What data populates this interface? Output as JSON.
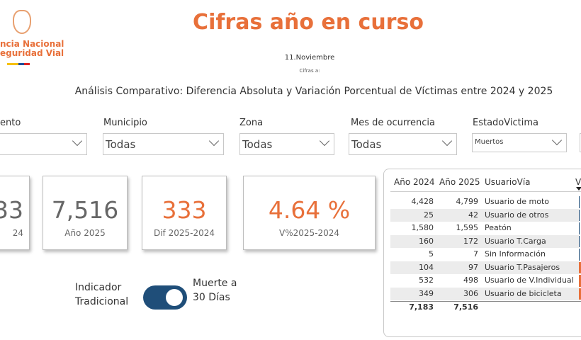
{
  "header": {
    "logo_lines": [
      "ncia Nacional",
      "eguridad Vial"
    ],
    "title": "Cifras año en curso",
    "date": "11.Noviembre",
    "date_caption": "Cifras a:",
    "subtitle": "Análisis Comparativo: Diferencia Absoluta y Variación Porcentual de Víctimas entre 2024 y 2025"
  },
  "filters": [
    {
      "label": "ento"
    },
    {
      "label": "Municipio",
      "value": "Todas"
    },
    {
      "label": "Zona",
      "value": "Todas"
    },
    {
      "label": "Mes de ocurrencia",
      "value": "Todas"
    },
    {
      "label": "EstadoVictima",
      "value": "Muertos"
    }
  ],
  "cards": [
    {
      "value": "33",
      "label": "24"
    },
    {
      "value": "7,516",
      "label": "Año 2025"
    },
    {
      "value": "333",
      "label": "Dif 2025-2024"
    },
    {
      "value": "4.64 %",
      "label": "V%2025-2024"
    }
  ],
  "toggle": {
    "left_lines": [
      "Indicador",
      "Tradicional"
    ],
    "right_lines": [
      "Muerte a",
      "30 Días"
    ]
  },
  "table": {
    "headers": [
      "Año 2024",
      "Año 2025",
      "UsuarioVía",
      "V"
    ],
    "rows": [
      [
        "4,428",
        "4,799",
        "Usuario de moto"
      ],
      [
        "25",
        "42",
        "Usuario de otros"
      ],
      [
        "1,580",
        "1,595",
        "Peatón"
      ],
      [
        "160",
        "172",
        "Usuario T.Carga"
      ],
      [
        "5",
        "7",
        "Sin Información"
      ],
      [
        "104",
        "97",
        "Usuario T.Pasajeros"
      ],
      [
        "532",
        "498",
        "Usuario de V.Individual"
      ],
      [
        "349",
        "306",
        "Usuario de bicicleta"
      ]
    ],
    "totals": [
      "7,183",
      "7,516"
    ]
  }
}
